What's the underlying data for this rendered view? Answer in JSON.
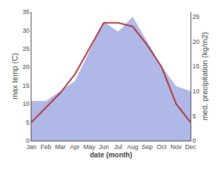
{
  "chart_data": {
    "type": "line",
    "categories": [
      "Jan",
      "Feb",
      "Mar",
      "Apr",
      "May",
      "Jun",
      "Jul",
      "Aug",
      "Sep",
      "Oct",
      "Nov",
      "Dec"
    ],
    "series": [
      {
        "type": "area",
        "axis": "y2",
        "color": "#b0b8e8",
        "values": [
          8,
          8,
          10,
          12,
          18,
          24,
          22,
          25,
          20,
          15,
          11,
          10
        ]
      },
      {
        "type": "line",
        "color": "#aa3333",
        "values": [
          5,
          9,
          13,
          18,
          25,
          32,
          32,
          31,
          26,
          20,
          10,
          5
        ]
      }
    ],
    "xlabel": "date (month)",
    "ylabel": "max temp (C)",
    "y2label": "med. precipitation (kg/m2)",
    "ylim": [
      0,
      35
    ],
    "yticks": [
      0,
      5,
      10,
      15,
      20,
      25,
      30,
      35
    ],
    "y2lim": [
      0,
      26
    ],
    "y2ticks": [
      0,
      5,
      10,
      15,
      20,
      25
    ],
    "grid": false
  }
}
